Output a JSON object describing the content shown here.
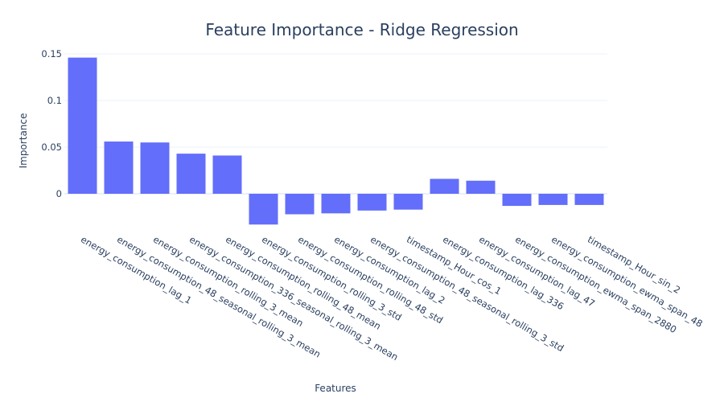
{
  "chart_data": {
    "type": "bar",
    "title": "Feature Importance - Ridge Regression",
    "xlabel": "Features",
    "ylabel": "Importance",
    "categories": [
      "energy_consumption_lag_1",
      "energy_consumption_48_seasonal_rolling_3_mean",
      "energy_consumption_rolling_3_mean",
      "energy_consumption_336_seasonal_rolling_3_mean",
      "energy_consumption_rolling_48_mean",
      "energy_consumption_rolling_3_std",
      "energy_consumption_rolling_48_std",
      "energy_consumption_lag_2",
      "energy_consumption_48_seasonal_rolling_3_std",
      "timestamp_Hour_cos_1",
      "energy_consumption_lag_336",
      "energy_consumption_lag_47",
      "energy_consumption_ewma_span_2880",
      "energy_consumption_ewma_span_48",
      "timestamp_Hour_sin_2"
    ],
    "values": [
      0.146,
      0.056,
      0.055,
      0.043,
      0.041,
      -0.033,
      -0.022,
      -0.021,
      -0.018,
      -0.017,
      0.016,
      0.014,
      -0.013,
      -0.012,
      -0.012
    ],
    "yticks": [
      0,
      0.05,
      0.1,
      0.15
    ],
    "ytick_labels": [
      "0",
      "0.05",
      "0.1",
      "0.15"
    ],
    "ylim": [
      -0.04,
      0.155
    ],
    "grid": true,
    "bar_color": "#636efa"
  }
}
